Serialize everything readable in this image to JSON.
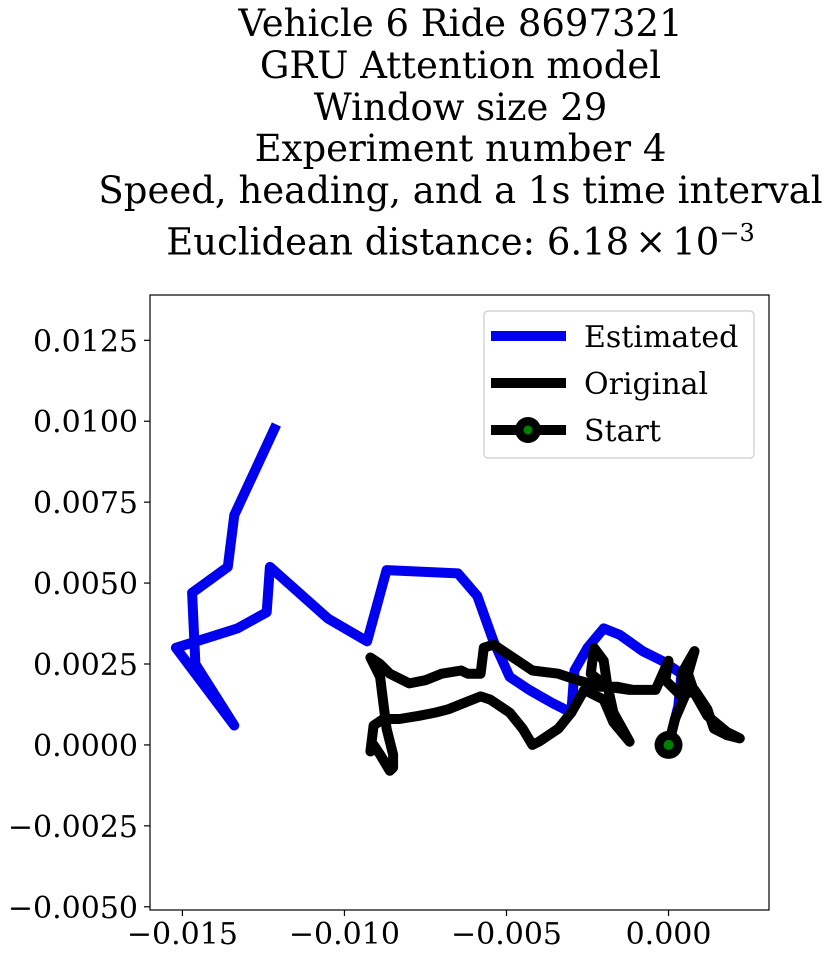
{
  "chart_data": {
    "type": "line",
    "title_lines": [
      "Vehicle 6 Ride 8697321",
      "GRU Attention model",
      "Window size 29",
      "Experiment number 4",
      "Speed, heading, and a 1s time interval"
    ],
    "title_metric_prefix": "Euclidean distance: 6.18",
    "title_metric_times": "×",
    "title_metric_base": "10",
    "title_metric_exp": "−3",
    "xlim": [
      -0.016,
      0.0031
    ],
    "ylim": [
      -0.0051,
      0.0139
    ],
    "x_ticks": [
      -0.015,
      -0.01,
      -0.005,
      0.0
    ],
    "x_tick_labels": [
      "−0.015",
      "−0.010",
      "−0.005",
      "0.000"
    ],
    "y_ticks": [
      0.0125,
      0.01,
      0.0075,
      0.005,
      0.0025,
      0.0,
      -0.0025,
      -0.005
    ],
    "y_tick_labels": [
      "0.0125",
      "0.0100",
      "0.0075",
      "0.0050",
      "0.0025",
      "0.0000",
      "−0.0025",
      "−0.0050"
    ],
    "grid": false,
    "legend_position": "top-right",
    "series": [
      {
        "name": "Estimated",
        "color": "#0000ee",
        "points": [
          [
            0.0,
            0.0
          ],
          [
            0.0003,
            0.0012
          ],
          [
            0.0004,
            0.0022
          ],
          [
            -0.0002,
            0.0026
          ],
          [
            -0.0008,
            0.0029
          ],
          [
            -0.0015,
            0.0034
          ],
          [
            -0.002,
            0.0036
          ],
          [
            -0.0025,
            0.003
          ],
          [
            -0.0029,
            0.0023
          ],
          [
            -0.003,
            0.001
          ],
          [
            -0.0036,
            0.0013
          ],
          [
            -0.0043,
            0.0017
          ],
          [
            -0.0049,
            0.0021
          ],
          [
            -0.0054,
            0.0032
          ],
          [
            -0.0059,
            0.0046
          ],
          [
            -0.0065,
            0.0053
          ],
          [
            -0.0087,
            0.0054
          ],
          [
            -0.0093,
            0.0032
          ],
          [
            -0.0105,
            0.0039
          ],
          [
            -0.0123,
            0.0055
          ],
          [
            -0.0124,
            0.0041
          ],
          [
            -0.0133,
            0.0036
          ],
          [
            -0.0152,
            0.003
          ],
          [
            -0.0134,
            0.0006
          ],
          [
            -0.0146,
            0.0025
          ],
          [
            -0.0147,
            0.0047
          ],
          [
            -0.0136,
            0.0055
          ],
          [
            -0.0134,
            0.0071
          ],
          [
            -0.0121,
            0.0099
          ]
        ]
      },
      {
        "name": "Original",
        "color": "#000000",
        "points": [
          [
            0.0,
            0.0
          ],
          [
            0.0002,
            0.0008
          ],
          [
            0.0005,
            0.0015
          ],
          [
            0.0004,
            0.0022
          ],
          [
            0.0008,
            0.0029
          ],
          [
            0.0006,
            0.0022
          ],
          [
            0.0008,
            0.0016
          ],
          [
            0.0012,
            0.0009
          ],
          [
            0.0018,
            0.0004
          ],
          [
            0.0022,
            0.0002
          ],
          [
            0.0018,
            0.0003
          ],
          [
            0.0014,
            0.0005
          ],
          [
            0.0012,
            0.0011
          ],
          [
            0.0008,
            0.0017
          ],
          [
            0.0004,
            0.0015
          ],
          [
            -0.0001,
            0.002
          ],
          [
            0.0,
            0.0026
          ],
          [
            -0.0004,
            0.0017
          ],
          [
            -0.0012,
            0.0017
          ],
          [
            -0.0019,
            0.0018
          ],
          [
            -0.0024,
            0.0022
          ],
          [
            -0.0023,
            0.003
          ],
          [
            -0.002,
            0.0026
          ],
          [
            -0.0019,
            0.0019
          ],
          [
            -0.0017,
            0.001
          ],
          [
            -0.0012,
            0.0001
          ],
          [
            -0.0017,
            0.0007
          ],
          [
            -0.002,
            0.0014
          ],
          [
            -0.0026,
            0.0017
          ],
          [
            -0.003,
            0.001
          ],
          [
            -0.0034,
            0.0005
          ],
          [
            -0.004,
            0.0001
          ],
          [
            -0.0042,
            0.0
          ],
          [
            -0.0045,
            0.0005
          ],
          [
            -0.0049,
            0.001
          ],
          [
            -0.0055,
            0.0014
          ],
          [
            -0.0058,
            0.0015
          ],
          [
            -0.0063,
            0.0013
          ],
          [
            -0.0068,
            0.0011
          ],
          [
            -0.0072,
            0.001
          ],
          [
            -0.0077,
            0.0009
          ],
          [
            -0.0083,
            0.0008
          ],
          [
            -0.0088,
            0.0008
          ],
          [
            -0.0091,
            0.0006
          ],
          [
            -0.0092,
            -0.0002
          ],
          [
            -0.0091,
            0.0
          ],
          [
            -0.0089,
            -0.0003
          ],
          [
            -0.0086,
            -0.0008
          ],
          [
            -0.0085,
            -0.0007
          ],
          [
            -0.0085,
            -0.0003
          ],
          [
            -0.0087,
            0.0005
          ],
          [
            -0.0088,
            0.0013
          ],
          [
            -0.0089,
            0.0021
          ],
          [
            -0.0092,
            0.0027
          ],
          [
            -0.0089,
            0.0025
          ],
          [
            -0.0086,
            0.0022
          ],
          [
            -0.008,
            0.0019
          ],
          [
            -0.0075,
            0.002
          ],
          [
            -0.007,
            0.0022
          ],
          [
            -0.0064,
            0.0023
          ],
          [
            -0.0062,
            0.0022
          ],
          [
            -0.0058,
            0.0022
          ],
          [
            -0.0057,
            0.003
          ],
          [
            -0.0054,
            0.0031
          ],
          [
            -0.0048,
            0.0027
          ],
          [
            -0.0042,
            0.0023
          ],
          [
            -0.0034,
            0.0022
          ],
          [
            -0.0028,
            0.002
          ],
          [
            -0.0021,
            0.0018
          ],
          [
            -0.0016,
            0.0018
          ],
          [
            -0.0011,
            0.0017
          ]
        ]
      }
    ],
    "start": {
      "name": "Start",
      "x": 0.0,
      "y": 0.0,
      "marker_color": "#000000",
      "inner_color": "#008000"
    },
    "legend": [
      {
        "label": "Estimated",
        "color": "#0000ee",
        "marker": false
      },
      {
        "label": "Original",
        "color": "#000000",
        "marker": false
      },
      {
        "label": "Start",
        "color": "#000000",
        "marker": true
      }
    ]
  }
}
